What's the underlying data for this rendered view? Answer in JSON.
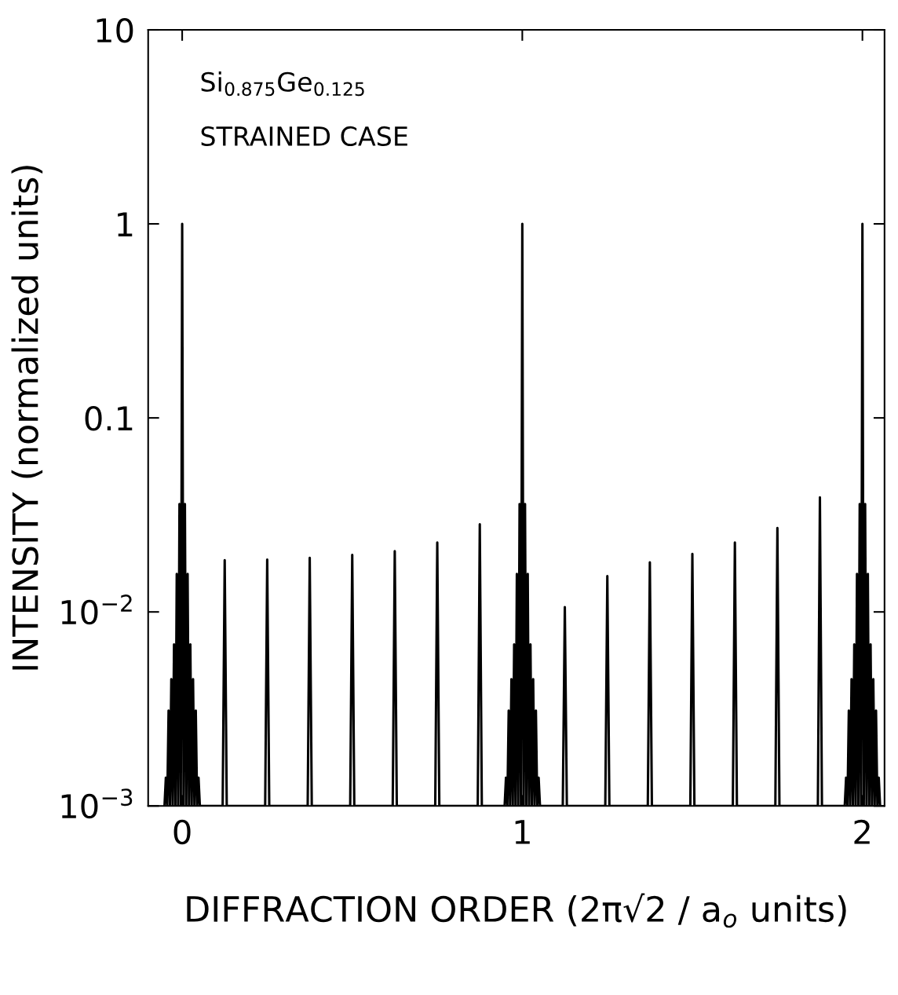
{
  "chart_data": {
    "type": "line",
    "xlabel": "DIFFRACTION ORDER (2π√2 / a$_{o}$ units)",
    "ylabel": "INTENSITY (normalized units)",
    "annotations": [
      "Si$_{0.875}$Ge$_{0.125}$",
      "STRAINED CASE"
    ],
    "log": "y",
    "xlim": [
      -0.1,
      2.065
    ],
    "xticks": [
      0,
      1,
      2
    ],
    "ylim": [
      0.001,
      10
    ],
    "yticks": [
      {
        "value": 0.001,
        "label": "10$^{−3}$"
      },
      {
        "value": 0.01,
        "label": "10$^{−2}$"
      },
      0.1,
      1,
      10
    ],
    "grid": false,
    "legend": false,
    "marker": "none",
    "line_style": "solid",
    "series": [
      {
        "color": "#000000",
        "x": [
          -0.052,
          -0.048,
          -0.044,
          -0.04,
          -0.036,
          -0.032,
          -0.028,
          -0.024,
          -0.02,
          -0.016,
          -0.012,
          -0.008,
          -0.004,
          0,
          0.004,
          0.008,
          0.012,
          0.016,
          0.02,
          0.024,
          0.028,
          0.032,
          0.036,
          0.04,
          0.044,
          0.048,
          0.052,
          0.119,
          0.125,
          0.131,
          0.244,
          0.25,
          0.256,
          0.369,
          0.375,
          0.381,
          0.494,
          0.5,
          0.506,
          0.619,
          0.625,
          0.631,
          0.744,
          0.75,
          0.756,
          0.869,
          0.875,
          0.881,
          0.948,
          0.952,
          0.956,
          0.96,
          0.964,
          0.968,
          0.972,
          0.976,
          0.98,
          0.984,
          0.988,
          0.992,
          0.996,
          1,
          1.004,
          1.008,
          1.012,
          1.016,
          1.02,
          1.024,
          1.028,
          1.032,
          1.036,
          1.04,
          1.044,
          1.048,
          1.052,
          1.119,
          1.125,
          1.131,
          1.244,
          1.25,
          1.256,
          1.369,
          1.375,
          1.381,
          1.494,
          1.5,
          1.506,
          1.619,
          1.625,
          1.631,
          1.744,
          1.75,
          1.756,
          1.869,
          1.875,
          1.881,
          1.948,
          1.952,
          1.956,
          1.96,
          1.964,
          1.968,
          1.972,
          1.976,
          1.98,
          1.984,
          1.988,
          1.992,
          1.996,
          2,
          2.004,
          2.008,
          2.012,
          2.016,
          2.02,
          2.024,
          2.028,
          2.032,
          2.036,
          2.04,
          2.044,
          2.048,
          2.052
        ],
        "values": [
          0.001,
          0.0014,
          0.001,
          0.0031,
          0.001,
          0.0045,
          0.001,
          0.0068,
          0.001,
          0.0157,
          0.001,
          0.036,
          0.001,
          1,
          0.001,
          0.036,
          0.001,
          0.0157,
          0.001,
          0.0068,
          0.001,
          0.0045,
          0.001,
          0.0031,
          0.001,
          0.0014,
          0.001,
          0.001,
          0.0185,
          0.001,
          0.001,
          0.0186,
          0.001,
          0.001,
          0.019,
          0.001,
          0.001,
          0.0197,
          0.001,
          0.001,
          0.0206,
          0.001,
          0.001,
          0.0228,
          0.001,
          0.001,
          0.0283,
          0.001,
          0.001,
          0.0014,
          0.001,
          0.0031,
          0.001,
          0.0045,
          0.001,
          0.0068,
          0.001,
          0.0157,
          0.001,
          0.036,
          0.001,
          1,
          0.001,
          0.036,
          0.001,
          0.0157,
          0.001,
          0.0068,
          0.001,
          0.0045,
          0.001,
          0.0031,
          0.001,
          0.0014,
          0.001,
          0.001,
          0.0106,
          0.001,
          0.001,
          0.0153,
          0.001,
          0.001,
          0.018,
          0.001,
          0.001,
          0.0199,
          0.001,
          0.001,
          0.0228,
          0.001,
          0.001,
          0.0271,
          0.001,
          0.001,
          0.039,
          0.001,
          0.001,
          0.0014,
          0.001,
          0.0031,
          0.001,
          0.0045,
          0.001,
          0.0068,
          0.001,
          0.0157,
          0.001,
          0.036,
          0.001,
          1,
          0.001,
          0.036,
          0.001,
          0.0157,
          0.001,
          0.0068,
          0.001,
          0.0045,
          0.001,
          0.0031,
          0.001,
          0.0014,
          0.001
        ]
      }
    ]
  }
}
